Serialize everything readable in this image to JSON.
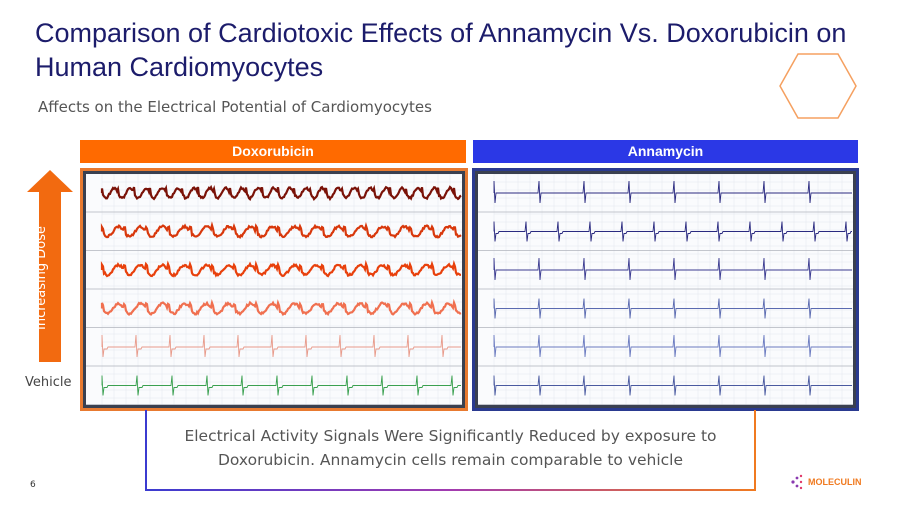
{
  "title": "Comparison of Cardiotoxic Effects of Annamycin Vs. Doxorubicin on Human Cardiomyocytes",
  "subtitle": "Affects on the Electrical Potential of Cardiomyocytes",
  "left_header": {
    "label": "Doxorubicin",
    "color": "#ff6a00"
  },
  "right_header": {
    "label": "Annamycin",
    "color": "#2b38e6"
  },
  "dose_label": "Increasing Dose",
  "vehicle_label": "Vehicle",
  "note": "Electrical Activity Signals Were Significantly Reduced by exposure to Doxorubicin. Annamycin cells remain comparable to vehicle",
  "page_number": "6",
  "logo_text": "MOLECULIN",
  "left_trace_colors": [
    "#7a1208",
    "#d8380c",
    "#e8400c",
    "#f07050",
    "#e89a8a",
    "#3aa050"
  ],
  "right_trace_colors": [
    "#2a2a80",
    "#2a2a80",
    "#3a3a90",
    "#5a6ab0",
    "#6a7ac0",
    "#4a5aa0"
  ]
}
